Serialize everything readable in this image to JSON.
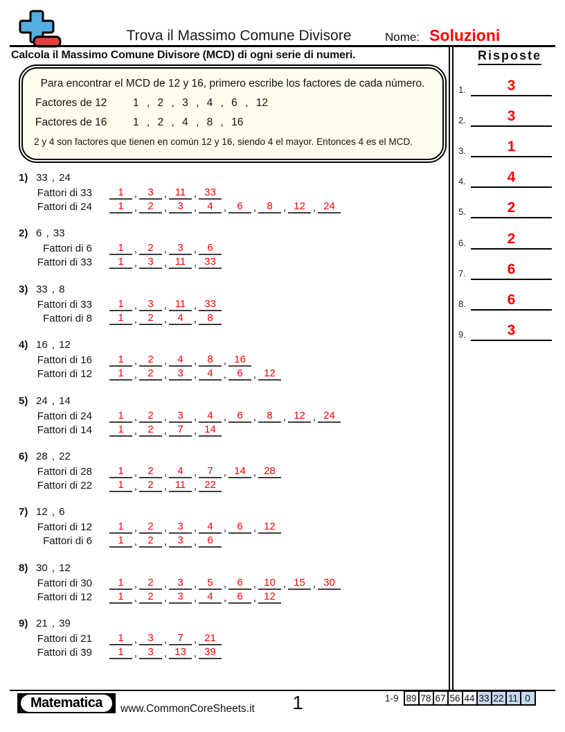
{
  "header": {
    "title": "Trova il Massimo Comune Divisore",
    "name_label": "Nome:",
    "name_value": "Soluzioni"
  },
  "instruction": "Calcola il Massimo Comune Divisore (MCD) di ogni serie di numeri.",
  "example": {
    "intro": "Para encontrar el MCD de 12 y 16, primero escribe los factores de cada número.",
    "rows": [
      {
        "label": "Factores de 12",
        "values": "1 , 2 , 3 , 4 , 6 , 12"
      },
      {
        "label": "Factores de 16",
        "values": "1 , 2 , 4 , 8 , 16"
      }
    ],
    "conclusion": "2 y 4 son factores que tienen en común 12 y 16, siendo 4 el mayor. Entonces 4 es el MCD."
  },
  "problems": [
    {
      "num": "1)",
      "pair": "33 , 24",
      "rows": [
        {
          "label": "Fattori di 33",
          "factors": [
            "1",
            "3",
            "11",
            "33"
          ]
        },
        {
          "label": "Fattori di 24",
          "factors": [
            "1",
            "2",
            "3",
            "4",
            "6",
            "8",
            "12",
            "24"
          ]
        }
      ]
    },
    {
      "num": "2)",
      "pair": "6 , 33",
      "rows": [
        {
          "label": "Fattori di 6",
          "factors": [
            "1",
            "2",
            "3",
            "6"
          ]
        },
        {
          "label": "Fattori di 33",
          "factors": [
            "1",
            "3",
            "11",
            "33"
          ]
        }
      ]
    },
    {
      "num": "3)",
      "pair": "33 , 8",
      "rows": [
        {
          "label": "Fattori di 33",
          "factors": [
            "1",
            "3",
            "11",
            "33"
          ]
        },
        {
          "label": "Fattori di 8",
          "factors": [
            "1",
            "2",
            "4",
            "8"
          ]
        }
      ]
    },
    {
      "num": "4)",
      "pair": "16 , 12",
      "rows": [
        {
          "label": "Fattori di 16",
          "factors": [
            "1",
            "2",
            "4",
            "8",
            "16"
          ]
        },
        {
          "label": "Fattori di 12",
          "factors": [
            "1",
            "2",
            "3",
            "4",
            "6",
            "12"
          ]
        }
      ]
    },
    {
      "num": "5)",
      "pair": "24 , 14",
      "rows": [
        {
          "label": "Fattori di 24",
          "factors": [
            "1",
            "2",
            "3",
            "4",
            "6",
            "8",
            "12",
            "24"
          ]
        },
        {
          "label": "Fattori di 14",
          "factors": [
            "1",
            "2",
            "7",
            "14"
          ]
        }
      ]
    },
    {
      "num": "6)",
      "pair": "28 , 22",
      "rows": [
        {
          "label": "Fattori di 28",
          "factors": [
            "1",
            "2",
            "4",
            "7",
            "14",
            "28"
          ]
        },
        {
          "label": "Fattori di 22",
          "factors": [
            "1",
            "2",
            "11",
            "22"
          ]
        }
      ]
    },
    {
      "num": "7)",
      "pair": "12 , 6",
      "rows": [
        {
          "label": "Fattori di 12",
          "factors": [
            "1",
            "2",
            "3",
            "4",
            "6",
            "12"
          ]
        },
        {
          "label": "Fattori di 6",
          "factors": [
            "1",
            "2",
            "3",
            "6"
          ]
        }
      ]
    },
    {
      "num": "8)",
      "pair": "30 , 12",
      "rows": [
        {
          "label": "Fattori di 30",
          "factors": [
            "1",
            "2",
            "3",
            "5",
            "6",
            "10",
            "15",
            "30"
          ]
        },
        {
          "label": "Fattori di 12",
          "factors": [
            "1",
            "2",
            "3",
            "4",
            "6",
            "12"
          ]
        }
      ]
    },
    {
      "num": "9)",
      "pair": "21 , 39",
      "rows": [
        {
          "label": "Fattori di 21",
          "factors": [
            "1",
            "3",
            "7",
            "21"
          ]
        },
        {
          "label": "Fattori di 39",
          "factors": [
            "1",
            "3",
            "13",
            "39"
          ]
        }
      ]
    }
  ],
  "answers": {
    "title": "Risposte",
    "items": [
      {
        "num": "1.",
        "value": "3"
      },
      {
        "num": "2.",
        "value": "3"
      },
      {
        "num": "3.",
        "value": "1"
      },
      {
        "num": "4.",
        "value": "4"
      },
      {
        "num": "5.",
        "value": "2"
      },
      {
        "num": "6.",
        "value": "2"
      },
      {
        "num": "7.",
        "value": "6"
      },
      {
        "num": "8.",
        "value": "6"
      },
      {
        "num": "9.",
        "value": "3"
      }
    ]
  },
  "footer": {
    "brand": "Matematica",
    "site": "www.CommonCoreSheets.it",
    "page": "1",
    "score_label": "1-9",
    "score_cells": [
      {
        "value": "89",
        "highlight": false
      },
      {
        "value": "78",
        "highlight": false
      },
      {
        "value": "67",
        "highlight": false
      },
      {
        "value": "56",
        "highlight": false
      },
      {
        "value": "44",
        "highlight": false
      },
      {
        "value": "33",
        "highlight": true
      },
      {
        "value": "22",
        "highlight": true
      },
      {
        "value": "11",
        "highlight": true
      },
      {
        "value": "0",
        "highlight": true
      }
    ]
  },
  "colors": {
    "accent_red": "#fe0000",
    "logo_blue": "#55ade2",
    "logo_red": "#e2423e",
    "score_highlight": "#c7d9f1",
    "example_bg": "#fffeec"
  }
}
